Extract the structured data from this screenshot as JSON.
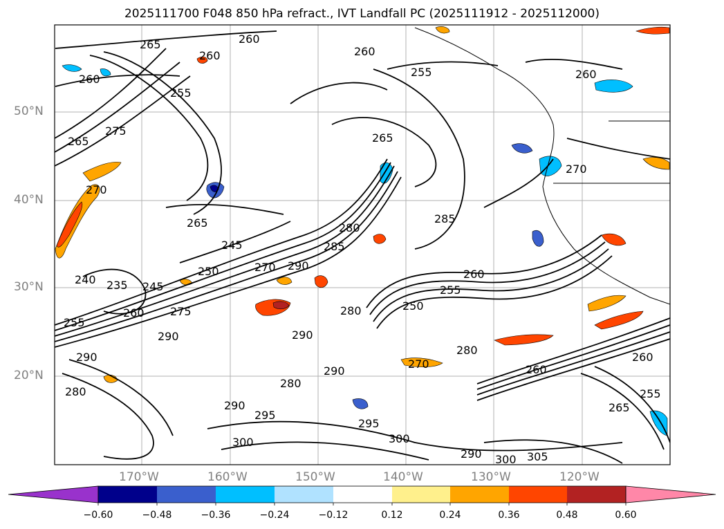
{
  "figure": {
    "title": "2025111700 F048 850 hPa refract., IVT Landfall PC (2025111912 - 2025112000)"
  },
  "map": {
    "region": "northeast-pacific",
    "extent": {
      "lon": [
        -180,
        -110
      ],
      "lat": [
        10,
        60
      ]
    },
    "gridlines": true,
    "lat_labels": [
      "50°N",
      "40°N",
      "30°N",
      "20°N"
    ],
    "lon_labels": [
      "170°W",
      "160°W",
      "150°W",
      "140°W",
      "130°W",
      "120°W"
    ],
    "coastline_color": "#000000",
    "contour_color": "#000000",
    "contour_labels": [
      "265",
      "260",
      "260",
      "260",
      "255",
      "260",
      "255",
      "265",
      "275",
      "265",
      "270",
      "265",
      "245",
      "250",
      "240",
      "235",
      "245",
      "255",
      "260",
      "275",
      "280",
      "285",
      "290",
      "270",
      "290",
      "290",
      "290",
      "280",
      "290",
      "280",
      "250",
      "255",
      "260",
      "280",
      "270",
      "260",
      "255",
      "265",
      "260",
      "280",
      "290",
      "295",
      "300",
      "295",
      "300",
      "290",
      "300",
      "305",
      "260",
      "270",
      "285"
    ]
  },
  "colorbar": {
    "extend": "both",
    "ticks": [
      "−0.60",
      "−0.48",
      "−0.36",
      "−0.24",
      "−0.12",
      "0.12",
      "0.24",
      "0.36",
      "0.48",
      "0.60"
    ],
    "colors": [
      "#9932cc",
      "#00008b",
      "#3a5fcd",
      "#00bfff",
      "#b0e2ff",
      "#ffffff",
      "#fff08c",
      "#ffa500",
      "#ff4500",
      "#b22222",
      "#ff87a8"
    ]
  }
}
